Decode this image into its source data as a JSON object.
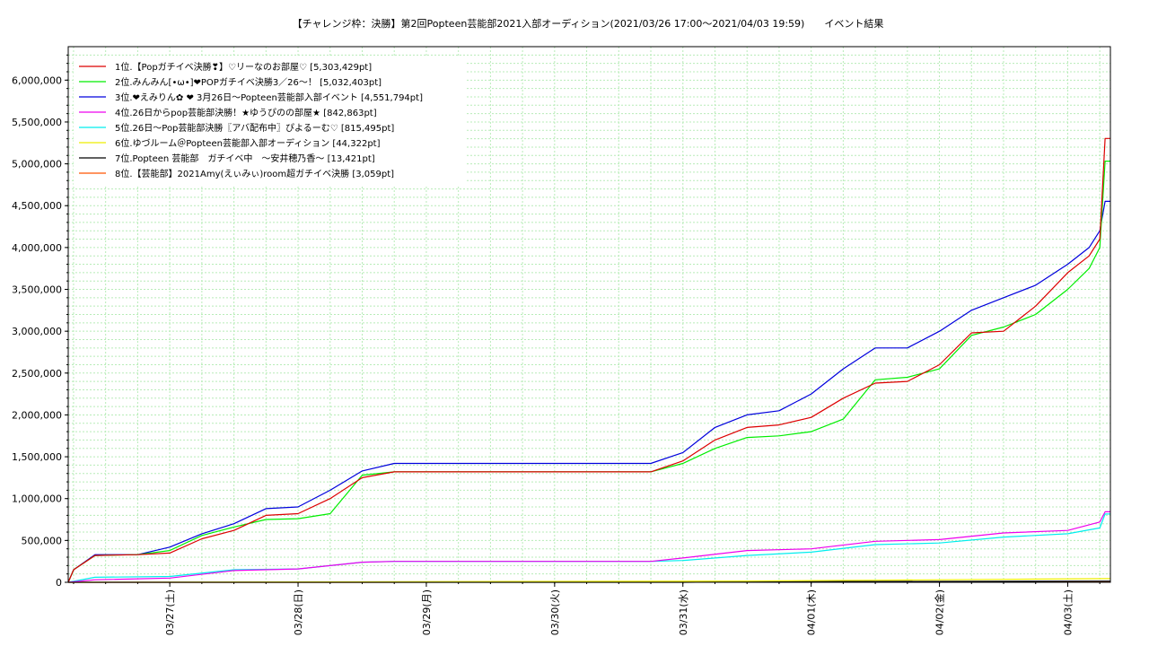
{
  "chart_data": {
    "type": "line",
    "title": "【チャレンジ枠：決勝】第2回Popteen芸能部2021入部オーディション(2021/03/26 17:00〜2021/04/03 19:59)　　イベント結果",
    "xlabel": "",
    "ylabel": "",
    "x_range": [
      "2021-03-26 17:00",
      "2021-04-03 19:59"
    ],
    "ylim": [
      0,
      6400000
    ],
    "y_ticks": [
      "0",
      "500,000",
      "1,000,000",
      "1,500,000",
      "2,000,000",
      "2,500,000",
      "3,000,000",
      "3,500,000",
      "4,000,000",
      "4,500,000",
      "5,000,000",
      "5,500,000",
      "6,000,000"
    ],
    "x_tick_labels": [
      "03/27(土)",
      "03/28(日)",
      "03/29(月)",
      "03/30(火)",
      "03/31(水)",
      "04/01(木)",
      "04/02(金)",
      "04/03(土)"
    ],
    "grid": true,
    "legend_position": "top-left",
    "series": [
      {
        "name": "1位.【Popガチイベ決勝❣】♡リーなのお部屋♡ [5,303,429pt]",
        "color": "#dd0000",
        "points": [
          [
            "2021-03-26 17:00",
            0
          ],
          [
            "2021-03-26 18:00",
            150000
          ],
          [
            "2021-03-26 22:00",
            320000
          ],
          [
            "2021-03-27 06:00",
            330000
          ],
          [
            "2021-03-27 12:00",
            350000
          ],
          [
            "2021-03-27 18:00",
            520000
          ],
          [
            "2021-03-28 00:00",
            620000
          ],
          [
            "2021-03-28 06:00",
            800000
          ],
          [
            "2021-03-28 12:00",
            820000
          ],
          [
            "2021-03-28 18:00",
            1000000
          ],
          [
            "2021-03-29 00:00",
            1250000
          ],
          [
            "2021-03-29 06:00",
            1320000
          ],
          [
            "2021-03-31 06:00",
            1320000
          ],
          [
            "2021-03-31 12:00",
            1450000
          ],
          [
            "2021-03-31 18:00",
            1700000
          ],
          [
            "2021-04-01 00:00",
            1850000
          ],
          [
            "2021-04-01 06:00",
            1880000
          ],
          [
            "2021-04-01 12:00",
            1970000
          ],
          [
            "2021-04-01 18:00",
            2200000
          ],
          [
            "2021-04-02 00:00",
            2380000
          ],
          [
            "2021-04-02 06:00",
            2400000
          ],
          [
            "2021-04-02 12:00",
            2600000
          ],
          [
            "2021-04-02 18:00",
            2980000
          ],
          [
            "2021-04-03 00:00",
            3000000
          ],
          [
            "2021-04-03 06:00",
            3300000
          ],
          [
            "2021-04-03 12:00",
            3700000
          ],
          [
            "2021-04-03 16:00",
            3900000
          ],
          [
            "2021-04-03 18:00",
            4100000
          ],
          [
            "2021-04-03 19:00",
            5303429
          ],
          [
            "2021-04-03 19:59",
            5303429
          ]
        ]
      },
      {
        "name": "2位.みんみん[•ω•]❤POPガチイベ決勝3／26〜！ [5,032,403pt]",
        "color": "#00ee00",
        "points": [
          [
            "2021-03-26 17:00",
            0
          ],
          [
            "2021-03-26 18:00",
            150000
          ],
          [
            "2021-03-26 22:00",
            320000
          ],
          [
            "2021-03-27 06:00",
            330000
          ],
          [
            "2021-03-27 12:00",
            380000
          ],
          [
            "2021-03-27 18:00",
            560000
          ],
          [
            "2021-03-28 00:00",
            660000
          ],
          [
            "2021-03-28 06:00",
            750000
          ],
          [
            "2021-03-28 12:00",
            760000
          ],
          [
            "2021-03-28 18:00",
            820000
          ],
          [
            "2021-03-29 00:00",
            1280000
          ],
          [
            "2021-03-29 06:00",
            1320000
          ],
          [
            "2021-03-31 06:00",
            1320000
          ],
          [
            "2021-03-31 12:00",
            1420000
          ],
          [
            "2021-03-31 18:00",
            1600000
          ],
          [
            "2021-04-01 00:00",
            1730000
          ],
          [
            "2021-04-01 06:00",
            1750000
          ],
          [
            "2021-04-01 12:00",
            1800000
          ],
          [
            "2021-04-01 18:00",
            1950000
          ],
          [
            "2021-04-02 00:00",
            2420000
          ],
          [
            "2021-04-02 06:00",
            2450000
          ],
          [
            "2021-04-02 12:00",
            2550000
          ],
          [
            "2021-04-02 18:00",
            2950000
          ],
          [
            "2021-04-03 00:00",
            3050000
          ],
          [
            "2021-04-03 06:00",
            3200000
          ],
          [
            "2021-04-03 12:00",
            3500000
          ],
          [
            "2021-04-03 16:00",
            3750000
          ],
          [
            "2021-04-03 18:00",
            4000000
          ],
          [
            "2021-04-03 19:00",
            5032403
          ],
          [
            "2021-04-03 19:59",
            5032403
          ]
        ]
      },
      {
        "name": "3位.❤えみりん✿ ❤ 3月26日〜Popteen芸能部入部イベント [4,551,794pt]",
        "color": "#0000dd",
        "points": [
          [
            "2021-03-26 17:00",
            0
          ],
          [
            "2021-03-26 18:00",
            150000
          ],
          [
            "2021-03-26 22:00",
            330000
          ],
          [
            "2021-03-27 06:00",
            330000
          ],
          [
            "2021-03-27 12:00",
            420000
          ],
          [
            "2021-03-27 18:00",
            580000
          ],
          [
            "2021-03-28 00:00",
            700000
          ],
          [
            "2021-03-28 06:00",
            880000
          ],
          [
            "2021-03-28 12:00",
            900000
          ],
          [
            "2021-03-28 18:00",
            1100000
          ],
          [
            "2021-03-29 00:00",
            1330000
          ],
          [
            "2021-03-29 06:00",
            1420000
          ],
          [
            "2021-03-31 06:00",
            1420000
          ],
          [
            "2021-03-31 12:00",
            1550000
          ],
          [
            "2021-03-31 18:00",
            1850000
          ],
          [
            "2021-04-01 00:00",
            2000000
          ],
          [
            "2021-04-01 06:00",
            2050000
          ],
          [
            "2021-04-01 12:00",
            2250000
          ],
          [
            "2021-04-01 18:00",
            2550000
          ],
          [
            "2021-04-02 00:00",
            2800000
          ],
          [
            "2021-04-02 06:00",
            2800000
          ],
          [
            "2021-04-02 12:00",
            3000000
          ],
          [
            "2021-04-02 18:00",
            3250000
          ],
          [
            "2021-04-03 00:00",
            3400000
          ],
          [
            "2021-04-03 06:00",
            3550000
          ],
          [
            "2021-04-03 12:00",
            3800000
          ],
          [
            "2021-04-03 16:00",
            4000000
          ],
          [
            "2021-04-03 18:00",
            4200000
          ],
          [
            "2021-04-03 19:00",
            4551794
          ],
          [
            "2021-04-03 19:59",
            4551794
          ]
        ]
      },
      {
        "name": "4位.26日からpop芸能部決勝！★ゆうぴのの部屋★ [842,863pt]",
        "color": "#ee00ee",
        "points": [
          [
            "2021-03-26 17:00",
            0
          ],
          [
            "2021-03-26 22:00",
            30000
          ],
          [
            "2021-03-27 12:00",
            50000
          ],
          [
            "2021-03-28 00:00",
            140000
          ],
          [
            "2021-03-28 12:00",
            160000
          ],
          [
            "2021-03-29 00:00",
            240000
          ],
          [
            "2021-03-29 06:00",
            250000
          ],
          [
            "2021-03-31 06:00",
            250000
          ],
          [
            "2021-03-31 12:00",
            290000
          ],
          [
            "2021-04-01 00:00",
            380000
          ],
          [
            "2021-04-01 12:00",
            400000
          ],
          [
            "2021-04-02 00:00",
            490000
          ],
          [
            "2021-04-02 12:00",
            510000
          ],
          [
            "2021-04-03 00:00",
            590000
          ],
          [
            "2021-04-03 12:00",
            620000
          ],
          [
            "2021-04-03 18:00",
            720000
          ],
          [
            "2021-04-03 19:00",
            842863
          ],
          [
            "2021-04-03 19:59",
            842863
          ]
        ]
      },
      {
        "name": "5位.26日〜Pop芸能部決勝〖アバ配布中〗ぴよるーむ♡ [815,495pt]",
        "color": "#00eeee",
        "points": [
          [
            "2021-03-26 17:00",
            0
          ],
          [
            "2021-03-26 22:00",
            60000
          ],
          [
            "2021-03-27 12:00",
            70000
          ],
          [
            "2021-03-28 00:00",
            150000
          ],
          [
            "2021-03-28 12:00",
            160000
          ],
          [
            "2021-03-29 00:00",
            240000
          ],
          [
            "2021-03-29 06:00",
            250000
          ],
          [
            "2021-03-31 06:00",
            250000
          ],
          [
            "2021-03-31 12:00",
            260000
          ],
          [
            "2021-04-01 00:00",
            320000
          ],
          [
            "2021-04-01 12:00",
            360000
          ],
          [
            "2021-04-02 00:00",
            450000
          ],
          [
            "2021-04-02 12:00",
            470000
          ],
          [
            "2021-04-03 00:00",
            540000
          ],
          [
            "2021-04-03 12:00",
            580000
          ],
          [
            "2021-04-03 18:00",
            650000
          ],
          [
            "2021-04-03 19:00",
            815495
          ],
          [
            "2021-04-03 19:59",
            815495
          ]
        ]
      },
      {
        "name": "6位.ゆづルーム＠Popteen芸能部入部オーディション [44,322pt]",
        "color": "#eeee00",
        "points": [
          [
            "2021-03-26 17:00",
            0
          ],
          [
            "2021-03-29 00:00",
            5000
          ],
          [
            "2021-04-01 00:00",
            15000
          ],
          [
            "2021-04-02 00:00",
            25000
          ],
          [
            "2021-04-03 00:00",
            35000
          ],
          [
            "2021-04-03 19:59",
            44322
          ]
        ]
      },
      {
        "name": "7位.Popteen 芸能部　ガチイベ中　〜安井穂乃香〜 [13,421pt]",
        "color": "#000000",
        "points": [
          [
            "2021-03-26 17:00",
            0
          ],
          [
            "2021-03-31 12:00",
            0
          ],
          [
            "2021-04-01 00:00",
            6000
          ],
          [
            "2021-04-02 00:00",
            10000
          ],
          [
            "2021-04-03 19:59",
            13421
          ]
        ]
      },
      {
        "name": "8位.【芸能部】2021Amy(えぃみぃ)room超ガチイベ決勝 [3,059pt]",
        "color": "#ff5500",
        "points": [
          [
            "2021-03-26 17:00",
            0
          ],
          [
            "2021-04-02 00:00",
            1500
          ],
          [
            "2021-04-03 19:59",
            3059
          ]
        ]
      }
    ]
  }
}
